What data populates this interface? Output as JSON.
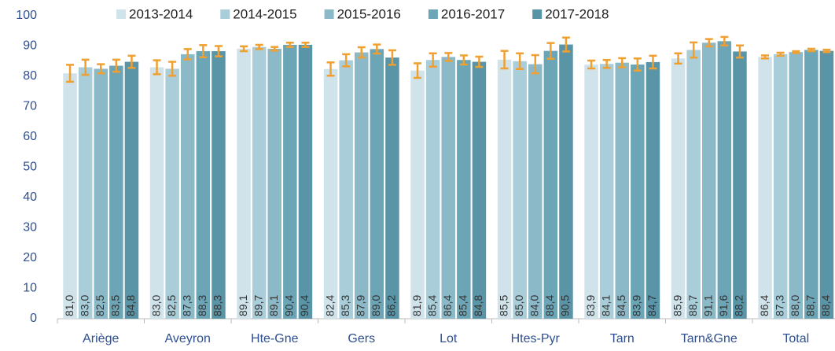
{
  "chart_data": {
    "type": "bar",
    "categories": [
      "Ariège",
      "Aveyron",
      "Hte-Gne",
      "Gers",
      "Lot",
      "Htes-Pyr",
      "Tarn",
      "Tarn&Gne",
      "Total"
    ],
    "series": [
      {
        "name": "2013-2014",
        "color": "#d0e3ea",
        "values": [
          81.0,
          83.0,
          89.1,
          82.4,
          81.9,
          85.5,
          83.9,
          85.9,
          86.4
        ],
        "value_labels": [
          "81,0",
          "83,0",
          "89,1",
          "82,4",
          "81,9",
          "85,5",
          "83,9",
          "85,9",
          "86,4"
        ],
        "errors": [
          2.8,
          2.3,
          0.8,
          2.2,
          2.4,
          2.9,
          1.3,
          1.7,
          0.5
        ]
      },
      {
        "name": "2014-2015",
        "color": "#a9cdd9",
        "values": [
          83.0,
          82.5,
          89.7,
          85.3,
          85.4,
          85.0,
          84.1,
          88.7,
          87.3
        ],
        "value_labels": [
          "83,0",
          "82,5",
          "89,7",
          "85,3",
          "85,4",
          "85,0",
          "84,1",
          "88,7",
          "87,3"
        ],
        "errors": [
          2.5,
          2.3,
          0.7,
          2.0,
          2.2,
          2.6,
          1.3,
          2.5,
          0.5
        ]
      },
      {
        "name": "2015-2016",
        "color": "#8cb9c8",
        "values": [
          82.5,
          87.3,
          89.1,
          87.9,
          86.4,
          84.0,
          84.5,
          91.1,
          88.0
        ],
        "value_labels": [
          "82,5",
          "87,3",
          "89,1",
          "87,9",
          "86,4",
          "84,0",
          "84,5",
          "91,1",
          "88,0"
        ],
        "errors": [
          1.5,
          1.7,
          0.6,
          1.7,
          1.3,
          3.0,
          1.5,
          1.2,
          0.3
        ]
      },
      {
        "name": "2016-2017",
        "color": "#6ca5b6",
        "values": [
          83.5,
          88.3,
          90.4,
          89.0,
          85.4,
          88.4,
          83.9,
          91.6,
          88.7
        ],
        "value_labels": [
          "83,5",
          "88,3",
          "90,4",
          "89,0",
          "85,4",
          "88,4",
          "83,9",
          "91,6",
          "88,7"
        ],
        "errors": [
          2.0,
          2.0,
          0.7,
          1.5,
          1.5,
          2.6,
          2.0,
          1.4,
          0.4
        ]
      },
      {
        "name": "2017-2018",
        "color": "#5a94a7",
        "values": [
          84.8,
          88.3,
          90.4,
          86.2,
          84.8,
          90.5,
          84.7,
          88.2,
          88.4
        ],
        "value_labels": [
          "84,8",
          "88,3",
          "90,4",
          "86,2",
          "84,8",
          "90,5",
          "84,7",
          "88,2",
          "88,4"
        ],
        "errors": [
          2.0,
          1.7,
          0.7,
          2.4,
          1.7,
          2.3,
          2.1,
          2.0,
          0.4
        ]
      }
    ],
    "error_color": "#f0a030",
    "ylim": [
      0,
      100
    ],
    "yticks": [
      0,
      10,
      20,
      30,
      40,
      50,
      60,
      70,
      80,
      90,
      100
    ],
    "grid": false,
    "legend": "top"
  }
}
